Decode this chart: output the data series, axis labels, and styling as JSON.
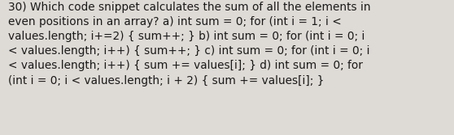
{
  "text": "30) Which code snippet calculates the sum of all the elements in\neven positions in an array? a) int sum = 0; for (int i = 1; i <\nvalues.length; i+=2) { sum++; } b) int sum = 0; for (int i = 0; i\n< values.length; i++) { sum++; } c) int sum = 0; for (int i = 0; i\n< values.length; i++) { sum += values[i]; } d) int sum = 0; for\n(int i = 0; i < values.length; i + 2) { sum += values[i]; }",
  "background_color": "#dedad5",
  "text_color": "#1a1a1a",
  "font_size": 9.8,
  "fig_width": 5.58,
  "fig_height": 1.67,
  "dpi": 100
}
